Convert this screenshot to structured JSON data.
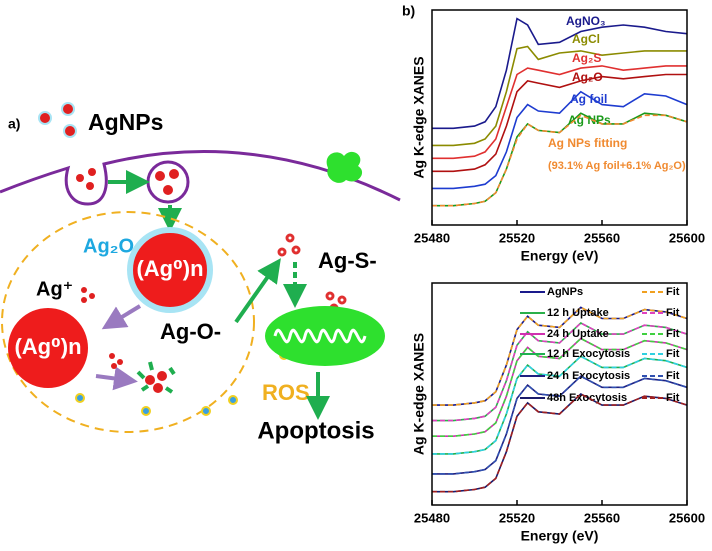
{
  "diagram": {
    "panel": "a)",
    "nanoparticle_label": "AgNPs",
    "shell_label": "Ag₂O",
    "core_labels": [
      "(Ag⁰)n",
      "(Ag⁰)n"
    ],
    "ion_label": "Ag⁺",
    "oxide_label": "Ag-O-",
    "sulfide_label": "Ag-S-",
    "ros_label": "ROS",
    "outcome_label": "Apoptosis"
  },
  "chart_data": [
    {
      "type": "line",
      "panel": "b)",
      "xlabel": "Energy (eV)",
      "ylabel": "Ag K-edge XANES",
      "xlim": [
        25480,
        25600
      ],
      "xticks": [
        25480,
        25520,
        25560,
        25600
      ],
      "ylim": [
        0,
        10
      ],
      "x": [
        25480,
        25490,
        25500,
        25505,
        25510,
        25515,
        25520,
        25525,
        25530,
        25540,
        25550,
        25560,
        25570,
        25580,
        25590,
        25600
      ],
      "series": [
        {
          "name": "AgNO₃",
          "color": "#1a1a8c",
          "values": [
            4.5,
            4.5,
            4.6,
            4.8,
            5.5,
            7.2,
            9.6,
            9.3,
            8.4,
            8.5,
            9.0,
            9.2,
            9.3,
            9.2,
            9.0,
            8.9
          ]
        },
        {
          "name": "AgCl",
          "color": "#8b8b00",
          "values": [
            3.7,
            3.7,
            3.8,
            4.0,
            4.6,
            6.2,
            8.2,
            8.3,
            7.7,
            8.0,
            8.1,
            7.9,
            8.0,
            8.1,
            8.1,
            8.1
          ]
        },
        {
          "name": "Ag₂S",
          "color": "#e03030",
          "values": [
            3.1,
            3.1,
            3.2,
            3.4,
            4.0,
            5.5,
            7.0,
            7.3,
            7.2,
            7.0,
            7.3,
            7.4,
            7.2,
            7.3,
            7.4,
            7.4
          ]
        },
        {
          "name": "Ag₂O",
          "color": "#b01010",
          "values": [
            2.5,
            2.5,
            2.6,
            2.8,
            3.3,
            4.6,
            6.2,
            6.7,
            6.6,
            6.4,
            6.7,
            6.9,
            6.8,
            6.9,
            7.0,
            7.0
          ]
        },
        {
          "name": "Ag foil",
          "color": "#1e3cd0",
          "values": [
            1.7,
            1.7,
            1.8,
            1.9,
            2.3,
            3.4,
            5.0,
            5.6,
            5.3,
            5.2,
            6.2,
            5.6,
            5.5,
            6.1,
            6.0,
            5.6
          ]
        },
        {
          "name": "Ag NPs",
          "color": "#1a9a1a",
          "values": [
            0.9,
            0.9,
            1.0,
            1.1,
            1.5,
            2.6,
            4.1,
            4.7,
            4.4,
            4.3,
            5.2,
            4.7,
            4.7,
            5.2,
            5.1,
            4.8
          ]
        },
        {
          "name": "Ag NPs fitting",
          "color": "#f08a30",
          "dashed": true,
          "values": [
            0.9,
            0.9,
            1.0,
            1.1,
            1.5,
            2.6,
            4.0,
            4.7,
            4.4,
            4.3,
            5.1,
            4.7,
            4.7,
            5.1,
            5.1,
            4.8
          ]
        }
      ],
      "annotation": "(93.1% Ag foil+6.1% Ag₂O)"
    },
    {
      "type": "line",
      "xlabel": "Energy (eV)",
      "ylabel": "Ag K-edge XANES",
      "xlim": [
        25480,
        25600
      ],
      "xticks": [
        25480,
        25520,
        25560,
        25600
      ],
      "ylim": [
        0,
        10
      ],
      "x": [
        25480,
        25490,
        25500,
        25505,
        25510,
        25515,
        25520,
        25525,
        25530,
        25540,
        25550,
        25560,
        25570,
        25580,
        25590,
        25600
      ],
      "series": [
        {
          "name": "AgNPs",
          "color": "#1a1a8c",
          "values": [
            4.5,
            4.5,
            4.6,
            4.7,
            5.1,
            6.3,
            7.9,
            8.5,
            8.1,
            8.0,
            8.9,
            8.4,
            8.4,
            8.8,
            8.7,
            8.4
          ]
        },
        {
          "name": "Fit",
          "color": "#f0a020",
          "dashed": true,
          "values": [
            4.5,
            4.5,
            4.6,
            4.7,
            5.1,
            6.3,
            7.9,
            8.5,
            8.1,
            8.0,
            8.9,
            8.4,
            8.4,
            8.8,
            8.7,
            8.4
          ]
        },
        {
          "name": "12 h Uptake",
          "color": "#2ab04a",
          "values": [
            3.8,
            3.8,
            3.9,
            4.0,
            4.4,
            5.6,
            7.2,
            7.8,
            7.4,
            7.3,
            8.2,
            7.7,
            7.7,
            8.1,
            8.0,
            7.7
          ]
        },
        {
          "name": "Fit",
          "color": "#e040c0",
          "dashed": true,
          "values": [
            3.8,
            3.8,
            3.9,
            4.0,
            4.4,
            5.6,
            7.2,
            7.8,
            7.4,
            7.3,
            8.2,
            7.7,
            7.7,
            8.1,
            8.0,
            7.7
          ]
        },
        {
          "name": "24 h Uptake",
          "color": "#d030b0",
          "values": [
            3.1,
            3.1,
            3.2,
            3.3,
            3.7,
            4.9,
            6.5,
            7.1,
            6.7,
            6.6,
            7.5,
            7.0,
            7.0,
            7.4,
            7.3,
            7.0
          ]
        },
        {
          "name": "Fit",
          "color": "#40d040",
          "dashed": true,
          "values": [
            3.1,
            3.1,
            3.2,
            3.3,
            3.7,
            4.9,
            6.5,
            7.1,
            6.7,
            6.6,
            7.5,
            7.0,
            7.0,
            7.4,
            7.3,
            7.0
          ]
        },
        {
          "name": "12 h Exocytosis",
          "color": "#20b050",
          "values": [
            2.3,
            2.3,
            2.4,
            2.5,
            2.9,
            4.1,
            5.7,
            6.3,
            5.9,
            5.8,
            6.7,
            6.2,
            6.2,
            6.6,
            6.5,
            6.2
          ]
        },
        {
          "name": "Fit",
          "color": "#30d0e0",
          "dashed": true,
          "values": [
            2.3,
            2.3,
            2.4,
            2.5,
            2.9,
            4.1,
            5.7,
            6.3,
            5.9,
            5.8,
            6.7,
            6.2,
            6.2,
            6.6,
            6.5,
            6.2
          ]
        },
        {
          "name": "24 h Exocytosis",
          "color": "#202080",
          "values": [
            1.4,
            1.4,
            1.5,
            1.6,
            2.0,
            3.2,
            4.8,
            5.4,
            5.0,
            4.9,
            5.8,
            5.3,
            5.3,
            5.7,
            5.6,
            5.3
          ]
        },
        {
          "name": "Fit",
          "color": "#3050b0",
          "dashed": true,
          "values": [
            1.4,
            1.4,
            1.5,
            1.6,
            2.0,
            3.2,
            4.8,
            5.4,
            5.0,
            4.9,
            5.8,
            5.3,
            5.3,
            5.7,
            5.6,
            5.3
          ]
        },
        {
          "name": "48h Exocytosis",
          "color": "#1a1a6a",
          "values": [
            0.6,
            0.6,
            0.7,
            0.8,
            1.2,
            2.4,
            4.0,
            4.6,
            4.2,
            4.1,
            5.0,
            4.5,
            4.5,
            4.9,
            4.8,
            4.5
          ]
        },
        {
          "name": "Fit",
          "color": "#a02020",
          "dashed": true,
          "values": [
            0.6,
            0.6,
            0.7,
            0.8,
            1.2,
            2.4,
            4.0,
            4.6,
            4.2,
            4.1,
            5.0,
            4.5,
            4.5,
            4.9,
            4.8,
            4.5
          ]
        }
      ]
    }
  ]
}
